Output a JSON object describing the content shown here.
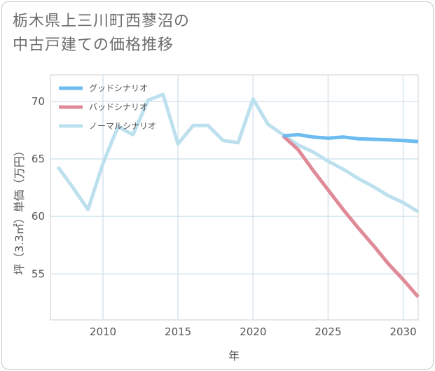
{
  "title_line1": "栃木県上三川町西蓼沼の",
  "title_line2": "中古戸建ての価格推移",
  "chart_data": {
    "type": "line",
    "xlabel": "年",
    "ylabel": "坪（3.3㎡）単価（万円）",
    "xlim": [
      2006.5,
      2031
    ],
    "ylim": [
      51,
      72.3
    ],
    "xticks": [
      2010,
      2015,
      2020,
      2025,
      2030
    ],
    "yticks": [
      55,
      60,
      65,
      70
    ],
    "grid": true,
    "legend_position": "top-left",
    "series": [
      {
        "name": "グッドシナリオ",
        "color": "#6cbcf0",
        "x": [
          2022,
          2023,
          2024,
          2025,
          2026,
          2027,
          2028,
          2029,
          2030,
          2031
        ],
        "y": [
          67.0,
          67.1,
          66.9,
          66.8,
          66.9,
          66.75,
          66.7,
          66.65,
          66.6,
          66.5
        ]
      },
      {
        "name": "バッドシナリオ",
        "color": "#e08a98",
        "x": [
          2022,
          2023,
          2024,
          2025,
          2026,
          2027,
          2028,
          2029,
          2030,
          2031
        ],
        "y": [
          67.0,
          65.8,
          64.0,
          62.3,
          60.6,
          59.0,
          57.5,
          55.9,
          54.5,
          53.0
        ]
      },
      {
        "name": "ノーマルシナリオ",
        "color": "#bde0ee",
        "x": [
          2007,
          2008,
          2009,
          2010,
          2011,
          2012,
          2013,
          2014,
          2015,
          2016,
          2017,
          2018,
          2019,
          2020,
          2021,
          2022,
          2023,
          2024,
          2025,
          2026,
          2027,
          2028,
          2029,
          2030,
          2031
        ],
        "y": [
          64.3,
          62.5,
          60.6,
          64.6,
          67.8,
          67.1,
          70.1,
          70.6,
          66.3,
          67.9,
          67.9,
          66.6,
          66.4,
          70.2,
          68.0,
          67.1,
          66.2,
          65.6,
          64.8,
          64.1,
          63.3,
          62.6,
          61.8,
          61.2,
          60.4
        ]
      }
    ]
  }
}
